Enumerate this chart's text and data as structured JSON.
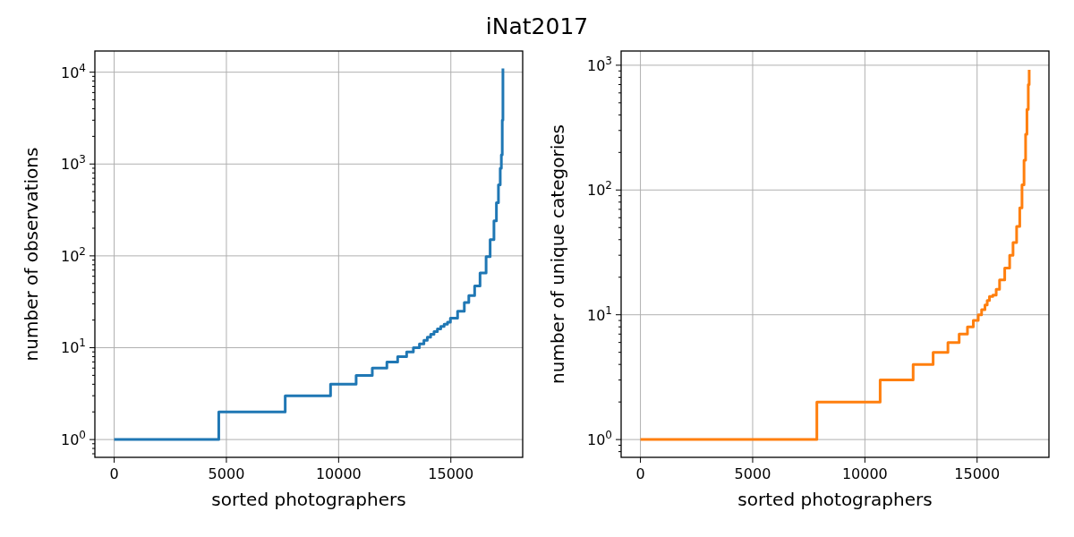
{
  "chart_data": [
    {
      "type": "step",
      "title": "iNat2017",
      "xlabel": "sorted photographers",
      "ylabel": "number of observations",
      "log": "y",
      "grid": true,
      "line_style": "solid",
      "series": [
        {
          "color": "#1f77b4",
          "x": [
            0,
            4660,
            7620,
            9640,
            10780,
            11500,
            12150,
            12630,
            13030,
            13330,
            13600,
            13800,
            13950,
            14100,
            14250,
            14400,
            14550,
            14700,
            14850,
            14980,
            15300,
            15600,
            15800,
            16060,
            16300,
            16570,
            16750,
            16920,
            17030,
            17120,
            17200,
            17250,
            17290,
            17320
          ],
          "values": [
            1,
            2,
            3,
            4,
            5,
            6,
            7,
            8,
            9,
            10,
            11,
            12,
            13,
            14,
            15,
            16,
            17,
            18,
            19,
            21,
            25,
            31,
            37,
            47,
            65,
            98,
            150,
            241,
            380,
            593,
            900,
            1260,
            3000,
            11000
          ]
        }
      ],
      "xlim": [
        -860,
        18200
      ],
      "xticks": [
        0,
        5000,
        10000,
        15000
      ],
      "ylim": [
        0.64,
        17000
      ],
      "yticks": [
        {
          "value": 0.7,
          "label": null
        },
        {
          "value": 0.8,
          "label": null
        },
        {
          "value": 0.9,
          "label": null
        },
        {
          "value": 1,
          "label": "10$^{0}$"
        },
        {
          "value": 2,
          "label": null
        },
        {
          "value": 3,
          "label": null
        },
        {
          "value": 4,
          "label": null
        },
        {
          "value": 5,
          "label": null
        },
        {
          "value": 6,
          "label": null
        },
        {
          "value": 7,
          "label": null
        },
        {
          "value": 8,
          "label": null
        },
        {
          "value": 9,
          "label": null
        },
        {
          "value": 10,
          "label": "10$^{1}$"
        },
        {
          "value": 20,
          "label": null
        },
        {
          "value": 30,
          "label": null
        },
        {
          "value": 40,
          "label": null
        },
        {
          "value": 50,
          "label": null
        },
        {
          "value": 60,
          "label": null
        },
        {
          "value": 70,
          "label": null
        },
        {
          "value": 80,
          "label": null
        },
        {
          "value": 90,
          "label": null
        },
        {
          "value": 100,
          "label": "10$^{2}$"
        },
        {
          "value": 200,
          "label": null
        },
        {
          "value": 300,
          "label": null
        },
        {
          "value": 400,
          "label": null
        },
        {
          "value": 500,
          "label": null
        },
        {
          "value": 600,
          "label": null
        },
        {
          "value": 700,
          "label": null
        },
        {
          "value": 800,
          "label": null
        },
        {
          "value": 900,
          "label": null
        },
        {
          "value": 1000,
          "label": "10$^{3}$"
        },
        {
          "value": 2000,
          "label": null
        },
        {
          "value": 3000,
          "label": null
        },
        {
          "value": 4000,
          "label": null
        },
        {
          "value": 5000,
          "label": null
        },
        {
          "value": 6000,
          "label": null
        },
        {
          "value": 7000,
          "label": null
        },
        {
          "value": 8000,
          "label": null
        },
        {
          "value": 9000,
          "label": null
        },
        {
          "value": 10000,
          "label": "10$^{4}$"
        }
      ]
    },
    {
      "type": "step",
      "xlabel": "sorted photographers",
      "ylabel": "number of unique categories",
      "log": "y",
      "grid": true,
      "line_style": "solid",
      "series": [
        {
          "color": "#ff7f0e",
          "x": [
            0,
            7860,
            10680,
            12150,
            13040,
            13700,
            14200,
            14570,
            14830,
            15050,
            15200,
            15350,
            15450,
            15550,
            15700,
            15850,
            16000,
            16230,
            16450,
            16600,
            16760,
            16900,
            17000,
            17090,
            17160,
            17220,
            17280,
            17320
          ],
          "values": [
            1,
            2,
            3,
            4,
            5,
            6,
            7,
            8,
            9,
            10,
            11,
            12,
            13,
            14,
            14.4,
            16,
            19,
            23.7,
            30,
            38,
            51,
            72,
            110,
            173,
            280,
            442,
            700,
            920
          ]
        }
      ],
      "xlim": [
        -860,
        18200
      ],
      "xticks": [
        0,
        5000,
        10000,
        15000
      ],
      "ylim": [
        0.72,
        1300
      ],
      "yticks": [
        {
          "value": 0.8,
          "label": null
        },
        {
          "value": 0.9,
          "label": null
        },
        {
          "value": 1,
          "label": "10$^{0}$"
        },
        {
          "value": 2,
          "label": null
        },
        {
          "value": 3,
          "label": null
        },
        {
          "value": 4,
          "label": null
        },
        {
          "value": 5,
          "label": null
        },
        {
          "value": 6,
          "label": null
        },
        {
          "value": 7,
          "label": null
        },
        {
          "value": 8,
          "label": null
        },
        {
          "value": 9,
          "label": null
        },
        {
          "value": 10,
          "label": "10$^{1}$"
        },
        {
          "value": 20,
          "label": null
        },
        {
          "value": 30,
          "label": null
        },
        {
          "value": 40,
          "label": null
        },
        {
          "value": 50,
          "label": null
        },
        {
          "value": 60,
          "label": null
        },
        {
          "value": 70,
          "label": null
        },
        {
          "value": 80,
          "label": null
        },
        {
          "value": 90,
          "label": null
        },
        {
          "value": 100,
          "label": "10$^{2}$"
        },
        {
          "value": 200,
          "label": null
        },
        {
          "value": 300,
          "label": null
        },
        {
          "value": 400,
          "label": null
        },
        {
          "value": 500,
          "label": null
        },
        {
          "value": 600,
          "label": null
        },
        {
          "value": 700,
          "label": null
        },
        {
          "value": 800,
          "label": null
        },
        {
          "value": 900,
          "label": null
        },
        {
          "value": 1000,
          "label": "10$^{3}$"
        }
      ]
    }
  ]
}
